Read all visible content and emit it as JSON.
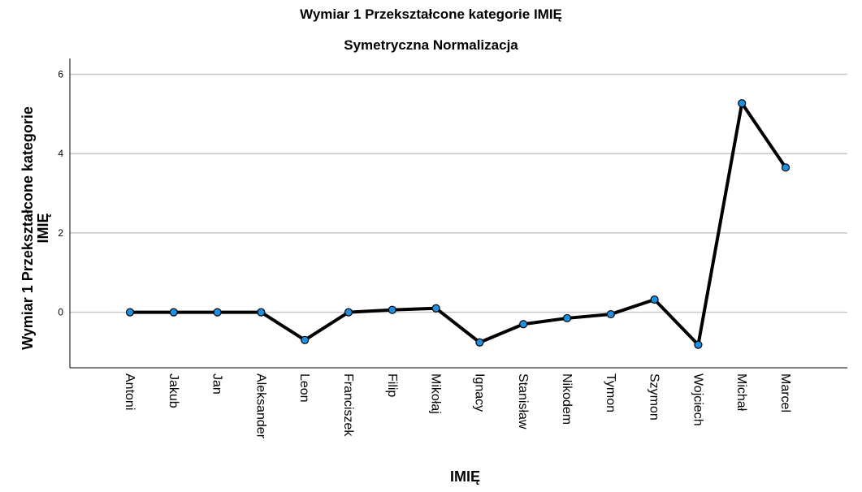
{
  "chart_data": {
    "type": "line",
    "title": "Wymiar 1 Przekształcone kategorie IMIĘ",
    "subtitle": "Symetryczna Normalizacja",
    "xlabel": "IMIĘ",
    "ylabel_lines": [
      "Wymiar 1 Przekształcone kategorie",
      "IMIĘ"
    ],
    "categories": [
      "Antoni",
      "Jakub",
      "Jan",
      "Aleksander",
      "Leon",
      "Franciszek",
      "Filip",
      "Mikołaj",
      "Ignacy",
      "Stanisław",
      "Nikodem",
      "Tymon",
      "Szymon",
      "Wojciech",
      "Michał",
      "Marcel"
    ],
    "values": [
      0.0,
      0.0,
      0.0,
      0.0,
      -0.7,
      0.0,
      0.06,
      0.1,
      -0.76,
      -0.3,
      -0.15,
      -0.05,
      0.32,
      -0.82,
      5.27,
      3.65
    ],
    "ylim": [
      -1.4,
      6.4
    ],
    "yticks": [
      0,
      2,
      4,
      6
    ],
    "grid": "horizontal",
    "line_color": "#000000",
    "marker_color": "#1f8fe0",
    "gridline_color": "#c8c8c8"
  }
}
